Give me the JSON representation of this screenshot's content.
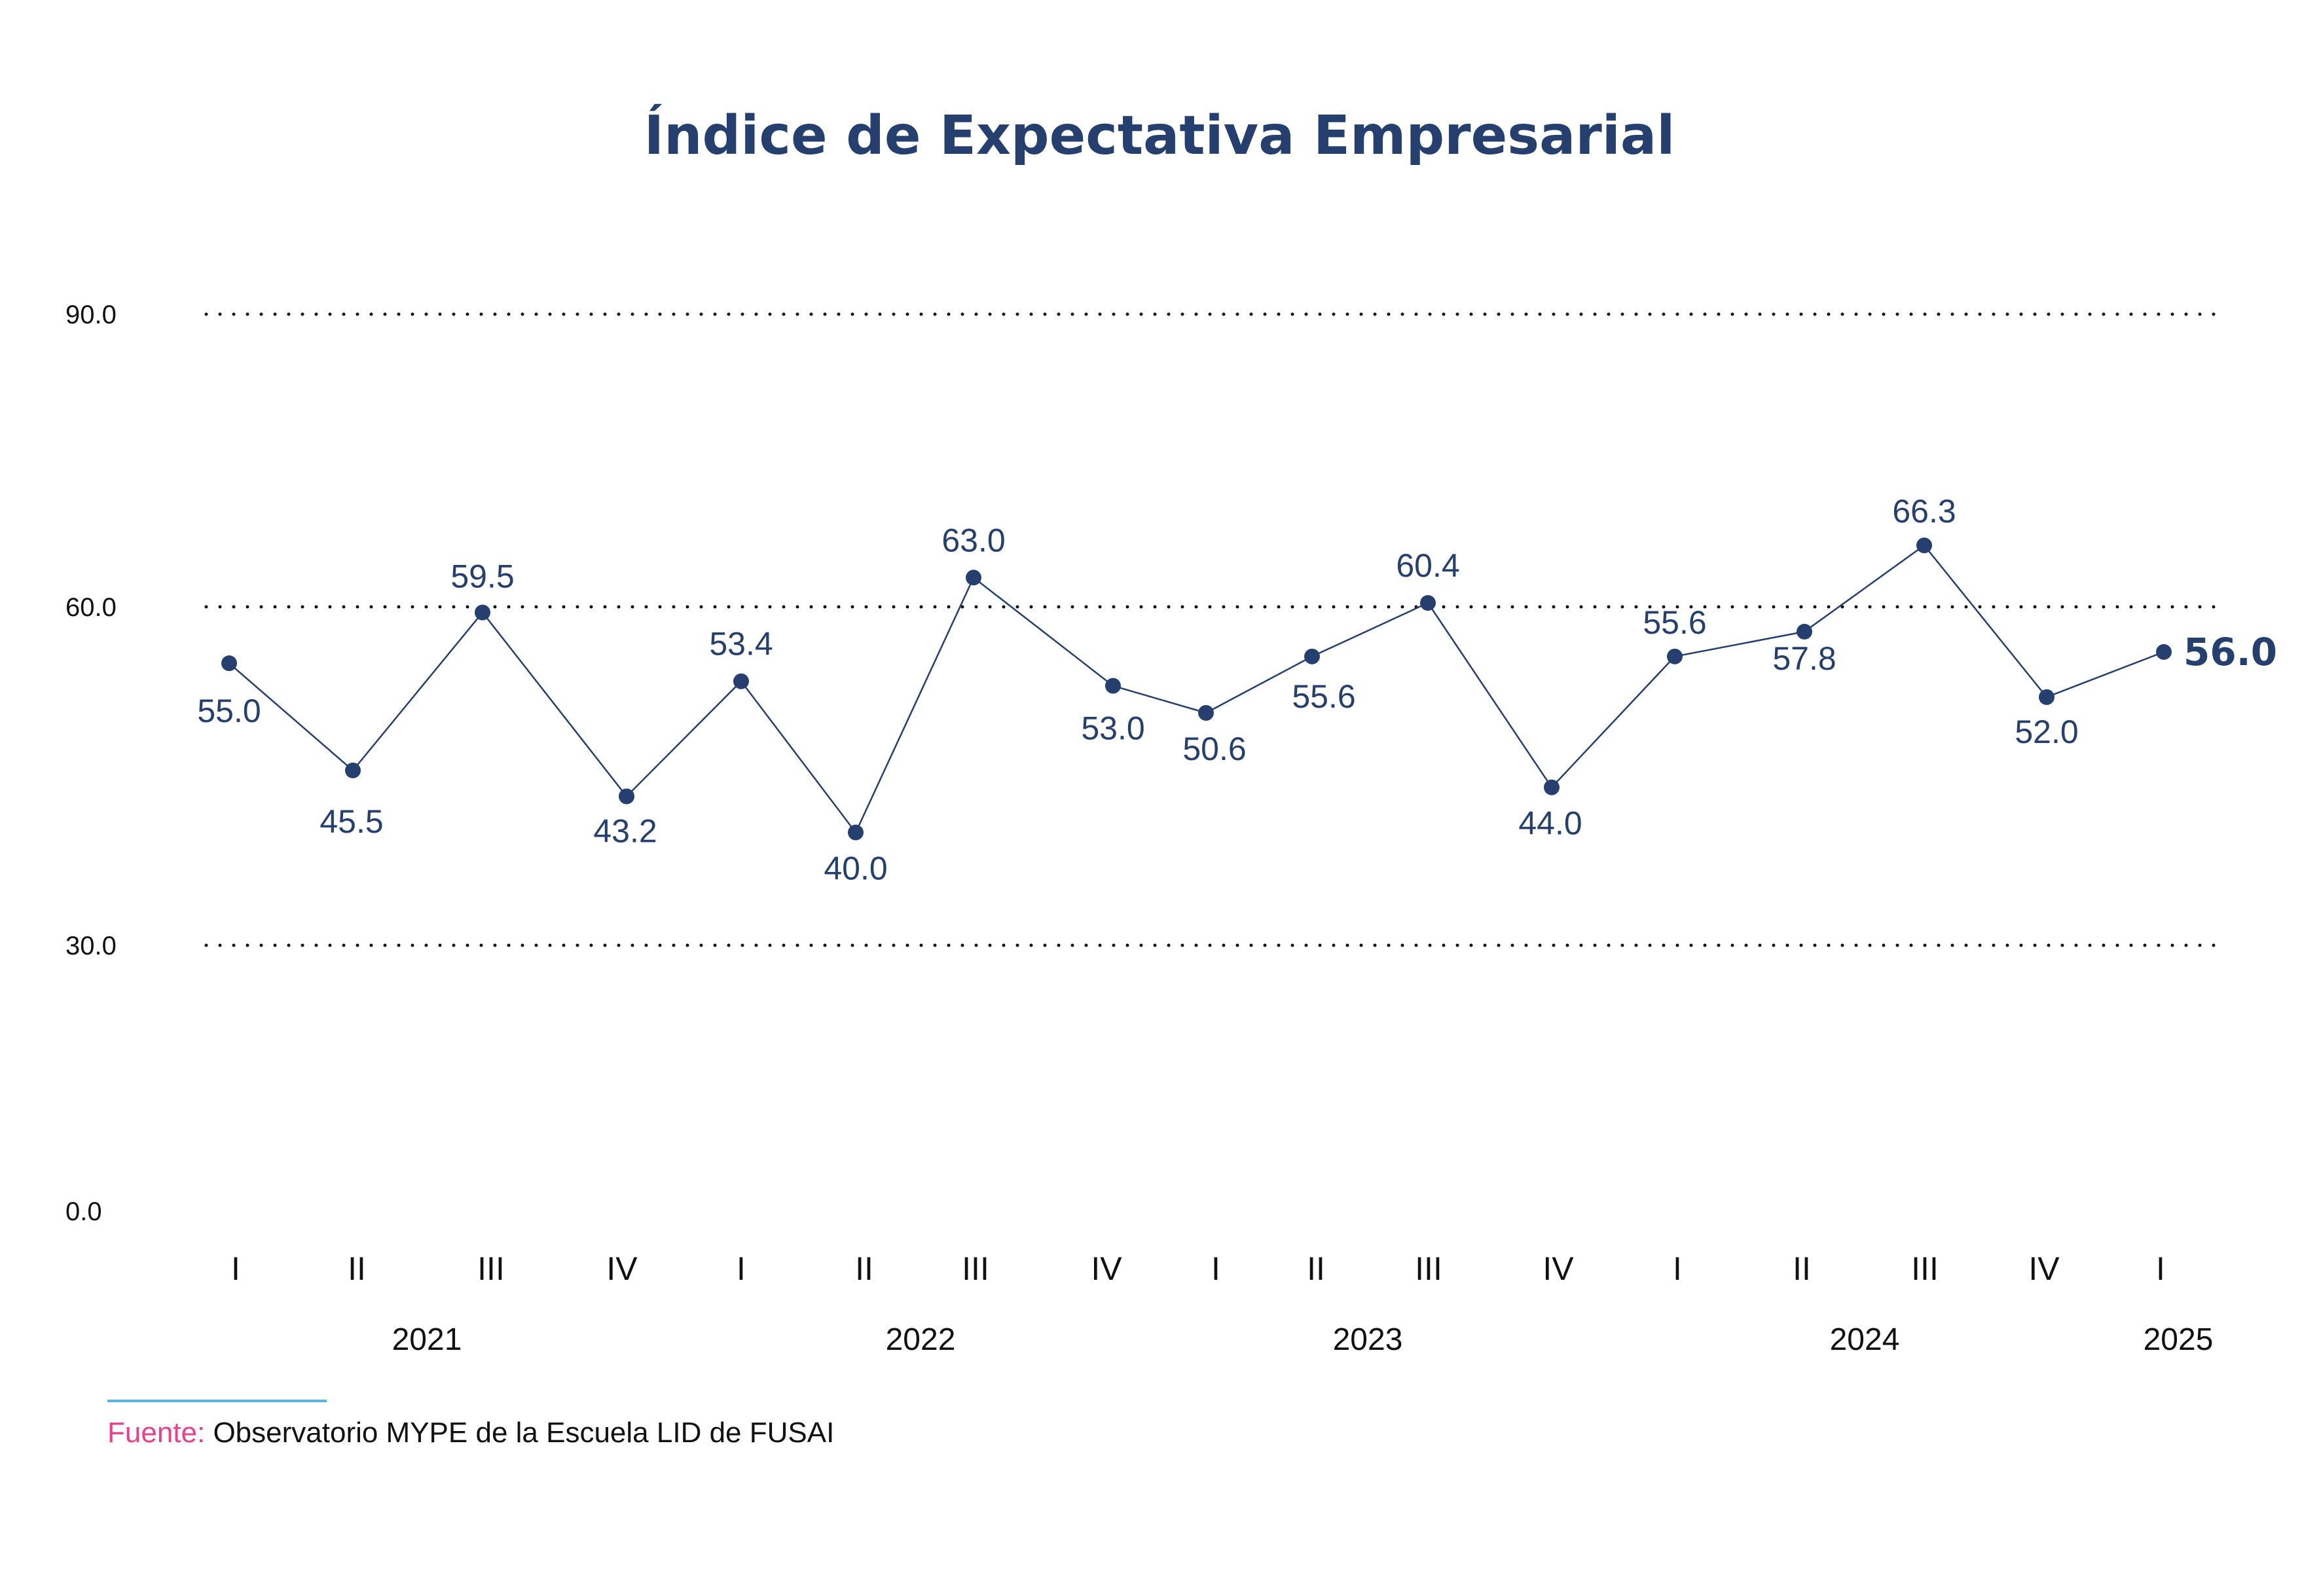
{
  "chart_data": {
    "type": "line",
    "title": "Índice de Expectativa Empresarial",
    "xlabel": "",
    "ylabel": "",
    "ylim": [
      0,
      90
    ],
    "y_ticks": [
      "90.0",
      "60.0",
      "30.0",
      "0.0"
    ],
    "grid": "dotted horizontal at 30, 60, 90",
    "categories": [
      "I",
      "II",
      "III",
      "IV",
      "I",
      "II",
      "III",
      "IV",
      "I",
      "II",
      "III",
      "IV",
      "I",
      "II",
      "III",
      "IV",
      "I"
    ],
    "years": [
      {
        "label": "2021",
        "quarters": [
          0,
          3
        ]
      },
      {
        "label": "2022",
        "quarters": [
          4,
          7
        ]
      },
      {
        "label": "2023",
        "quarters": [
          8,
          11
        ]
      },
      {
        "label": "2024",
        "quarters": [
          12,
          15
        ]
      },
      {
        "label": "2025",
        "quarters": [
          16,
          16
        ]
      }
    ],
    "series": [
      {
        "values": [
          55.0,
          45.5,
          59.5,
          43.2,
          53.4,
          40.0,
          63.0,
          53.0,
          50.6,
          55.6,
          60.4,
          44.0,
          55.6,
          57.8,
          66.3,
          52.0,
          56.0
        ],
        "labels": [
          "55.0",
          "45.5",
          "59.5",
          "43.2",
          "53.4",
          "40.0",
          "63.0",
          "53.0",
          "50.6",
          "55.6",
          "60.4",
          "44.0",
          "55.6",
          "57.8",
          "66.3",
          "52.0",
          "56.0"
        ],
        "color": "#25406e"
      }
    ]
  },
  "source": {
    "label": "Fuente:",
    "text": "Observatorio MYPE de la Escuela LID de FUSAI",
    "rule_color": "#5ab4e0",
    "label_color": "#e8408c"
  }
}
